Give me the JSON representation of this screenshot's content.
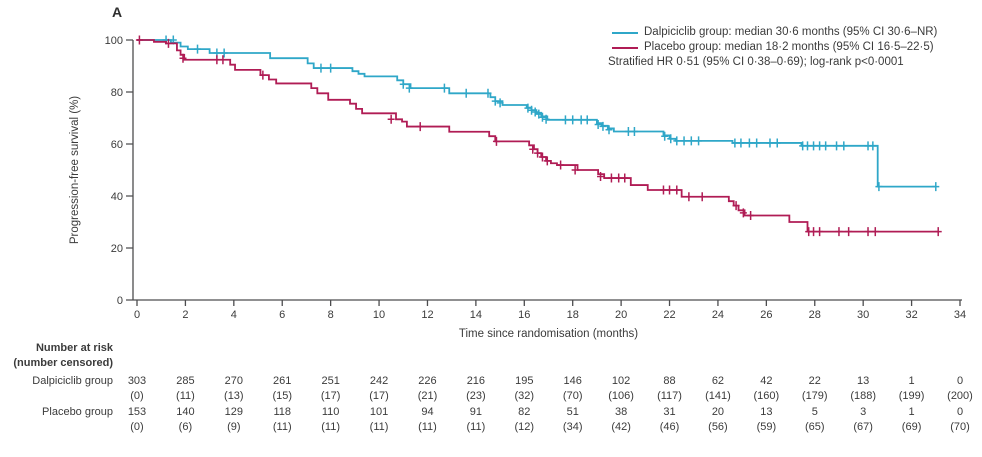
{
  "panel": {
    "label": "A"
  },
  "colors": {
    "dalpiciclib": "#2fa7c8",
    "placebo": "#b01c55",
    "text": "#3b3b3b",
    "axis": "#4d4d4f"
  },
  "legend": {
    "entries": [
      {
        "label": "Dalpiciclib group: median 30·6 months (95% CI 30·6–NR)",
        "color_key": "dalpiciclib"
      },
      {
        "label": "Placebo group: median 18·2 months (95% CI 16·5–22·5)",
        "color_key": "placebo"
      }
    ],
    "note": "Stratified HR 0·51 (95% CI 0·38–0·69); log-rank p<0·0001"
  },
  "chart_data": {
    "type": "line",
    "subtype": "kaplan-meier-step",
    "xlabel": "Time since randomisation (months)",
    "ylabel": "Progression-free survival (%)",
    "xlim": [
      0,
      34
    ],
    "ylim": [
      0,
      100
    ],
    "xticks": [
      0,
      2,
      4,
      6,
      8,
      10,
      12,
      14,
      16,
      18,
      20,
      22,
      24,
      26,
      28,
      30,
      32,
      34
    ],
    "yticks": [
      0,
      20,
      40,
      60,
      80,
      100
    ],
    "grid": false,
    "legend_position": "top-right",
    "series": [
      {
        "name": "Dalpiciclib group",
        "color_key": "dalpiciclib",
        "median_months": "30·6",
        "ci": "30·6–NR",
        "steps": [
          [
            0,
            100
          ],
          [
            1.4,
            99
          ],
          [
            1.8,
            97.5
          ],
          [
            2.1,
            96.5
          ],
          [
            3.0,
            95
          ],
          [
            5.5,
            93
          ],
          [
            7.05,
            91
          ],
          [
            7.3,
            89.2
          ],
          [
            8.9,
            88
          ],
          [
            9.15,
            87
          ],
          [
            9.4,
            86
          ],
          [
            10.75,
            84.5
          ],
          [
            11.0,
            83
          ],
          [
            11.3,
            81.5
          ],
          [
            12.9,
            79.5
          ],
          [
            14.6,
            78
          ],
          [
            14.8,
            76.5
          ],
          [
            15.1,
            75
          ],
          [
            16.1,
            74
          ],
          [
            16.3,
            73
          ],
          [
            16.5,
            72
          ],
          [
            16.7,
            70.6
          ],
          [
            16.95,
            69.3
          ],
          [
            19.0,
            68
          ],
          [
            19.2,
            67
          ],
          [
            19.45,
            66
          ],
          [
            19.7,
            64.8
          ],
          [
            21.75,
            63.3
          ],
          [
            22.0,
            62
          ],
          [
            22.25,
            61.2
          ],
          [
            24.6,
            60.4
          ],
          [
            27.45,
            59.3
          ],
          [
            30.6,
            43.6
          ],
          [
            33.0,
            43.6
          ]
        ],
        "censor_marks": [
          [
            1.2,
            100
          ],
          [
            1.5,
            100
          ],
          [
            2.5,
            96.5
          ],
          [
            3.3,
            95
          ],
          [
            3.6,
            95
          ],
          [
            7.6,
            89.2
          ],
          [
            8.0,
            89.2
          ],
          [
            11.0,
            83
          ],
          [
            11.25,
            81.5
          ],
          [
            12.7,
            81.5
          ],
          [
            13.6,
            79.5
          ],
          [
            14.5,
            79.5
          ],
          [
            14.8,
            76.5
          ],
          [
            15.0,
            75.8
          ],
          [
            16.15,
            73.8
          ],
          [
            16.3,
            73
          ],
          [
            16.45,
            72.3
          ],
          [
            16.6,
            71.5
          ],
          [
            16.75,
            70.3
          ],
          [
            16.9,
            69.5
          ],
          [
            17.7,
            69.3
          ],
          [
            18.0,
            69.3
          ],
          [
            18.35,
            69.3
          ],
          [
            18.6,
            69.3
          ],
          [
            19.05,
            67.5
          ],
          [
            19.25,
            66.8
          ],
          [
            19.5,
            65.5
          ],
          [
            20.3,
            64.8
          ],
          [
            20.55,
            64.8
          ],
          [
            21.8,
            63
          ],
          [
            22.05,
            62
          ],
          [
            22.3,
            61.2
          ],
          [
            22.6,
            61.2
          ],
          [
            22.9,
            61.2
          ],
          [
            23.2,
            61.2
          ],
          [
            24.7,
            60.4
          ],
          [
            24.95,
            60.4
          ],
          [
            25.3,
            60.4
          ],
          [
            25.6,
            60.4
          ],
          [
            26.15,
            60.4
          ],
          [
            26.45,
            60.4
          ],
          [
            27.5,
            59.3
          ],
          [
            27.7,
            59.3
          ],
          [
            27.95,
            59.3
          ],
          [
            28.2,
            59.3
          ],
          [
            28.45,
            59.3
          ],
          [
            28.9,
            59.3
          ],
          [
            29.2,
            59.3
          ],
          [
            30.2,
            59.3
          ],
          [
            30.4,
            59.3
          ],
          [
            30.65,
            43.6
          ],
          [
            33.0,
            43.6
          ]
        ]
      },
      {
        "name": "Placebo group",
        "color_key": "placebo",
        "median_months": "18·2",
        "ci": "16·5–22·5",
        "steps": [
          [
            0,
            100
          ],
          [
            0.7,
            99.3
          ],
          [
            1.2,
            98.7
          ],
          [
            1.65,
            96
          ],
          [
            1.8,
            94.3
          ],
          [
            1.95,
            92.4
          ],
          [
            3.85,
            90.5
          ],
          [
            4.05,
            88.5
          ],
          [
            5.1,
            86.5
          ],
          [
            5.45,
            84.8
          ],
          [
            5.75,
            83.3
          ],
          [
            7.2,
            81.5
          ],
          [
            7.45,
            79.5
          ],
          [
            7.9,
            77
          ],
          [
            8.8,
            75.5
          ],
          [
            9.05,
            73.5
          ],
          [
            9.3,
            71.8
          ],
          [
            10.7,
            69.5
          ],
          [
            10.95,
            68.6
          ],
          [
            11.15,
            66.7
          ],
          [
            12.9,
            64.7
          ],
          [
            14.55,
            63
          ],
          [
            14.8,
            61
          ],
          [
            16.2,
            59.5
          ],
          [
            16.4,
            58
          ],
          [
            16.55,
            56.5
          ],
          [
            16.7,
            55
          ],
          [
            16.9,
            53.5
          ],
          [
            17.1,
            52.6
          ],
          [
            17.35,
            51.9
          ],
          [
            18.2,
            50
          ],
          [
            19.05,
            48.4
          ],
          [
            19.3,
            46.9
          ],
          [
            20.4,
            44.2
          ],
          [
            21.1,
            42.3
          ],
          [
            22.5,
            39.7
          ],
          [
            24.45,
            38
          ],
          [
            24.65,
            36.3
          ],
          [
            24.85,
            34.5
          ],
          [
            25.1,
            32.5
          ],
          [
            26.95,
            30
          ],
          [
            27.7,
            26.3
          ],
          [
            33.1,
            26.3
          ]
        ],
        "censor_marks": [
          [
            0.1,
            100
          ],
          [
            1.3,
            98.7
          ],
          [
            1.9,
            93
          ],
          [
            3.3,
            92.4
          ],
          [
            3.55,
            92.4
          ],
          [
            5.2,
            86.5
          ],
          [
            10.5,
            69.5
          ],
          [
            11.7,
            66.7
          ],
          [
            14.85,
            61
          ],
          [
            16.35,
            58
          ],
          [
            16.55,
            56.5
          ],
          [
            16.75,
            55
          ],
          [
            16.95,
            53.5
          ],
          [
            17.5,
            51.9
          ],
          [
            18.1,
            50
          ],
          [
            19.15,
            47.5
          ],
          [
            19.6,
            46.9
          ],
          [
            19.9,
            46.9
          ],
          [
            20.15,
            46.9
          ],
          [
            21.75,
            42.3
          ],
          [
            22.0,
            42.3
          ],
          [
            22.3,
            42.3
          ],
          [
            22.8,
            39.7
          ],
          [
            23.35,
            39.7
          ],
          [
            24.75,
            36.3
          ],
          [
            25.05,
            33.5
          ],
          [
            25.35,
            32.5
          ],
          [
            27.75,
            26.3
          ],
          [
            27.95,
            26.3
          ],
          [
            28.2,
            26.3
          ],
          [
            29.0,
            26.3
          ],
          [
            29.4,
            26.3
          ],
          [
            30.2,
            26.3
          ],
          [
            30.5,
            26.3
          ],
          [
            33.1,
            26.3
          ]
        ]
      }
    ]
  },
  "risk_table": {
    "title_line1": "Number at risk",
    "title_line2": "(number censored)",
    "months": [
      0,
      2,
      4,
      6,
      8,
      10,
      12,
      14,
      16,
      18,
      20,
      22,
      24,
      26,
      28,
      30,
      32,
      34
    ],
    "rows": [
      {
        "label": "Dalpiciclib group",
        "at_risk": [
          "303",
          "285",
          "270",
          "261",
          "251",
          "242",
          "226",
          "216",
          "195",
          "146",
          "102",
          "88",
          "62",
          "42",
          "22",
          "13",
          "1",
          "0"
        ],
        "censored": [
          "(0)",
          "(11)",
          "(13)",
          "(15)",
          "(17)",
          "(17)",
          "(21)",
          "(23)",
          "(32)",
          "(70)",
          "(106)",
          "(117)",
          "(141)",
          "(160)",
          "(179)",
          "(188)",
          "(199)",
          "(200)"
        ]
      },
      {
        "label": "Placebo group",
        "at_risk": [
          "153",
          "140",
          "129",
          "118",
          "110",
          "101",
          "94",
          "91",
          "82",
          "51",
          "38",
          "31",
          "20",
          "13",
          "5",
          "3",
          "1",
          "0"
        ],
        "censored": [
          "(0)",
          "(6)",
          "(9)",
          "(11)",
          "(11)",
          "(11)",
          "(11)",
          "(11)",
          "(12)",
          "(34)",
          "(42)",
          "(46)",
          "(56)",
          "(59)",
          "(65)",
          "(67)",
          "(69)",
          "(70)"
        ]
      }
    ]
  }
}
